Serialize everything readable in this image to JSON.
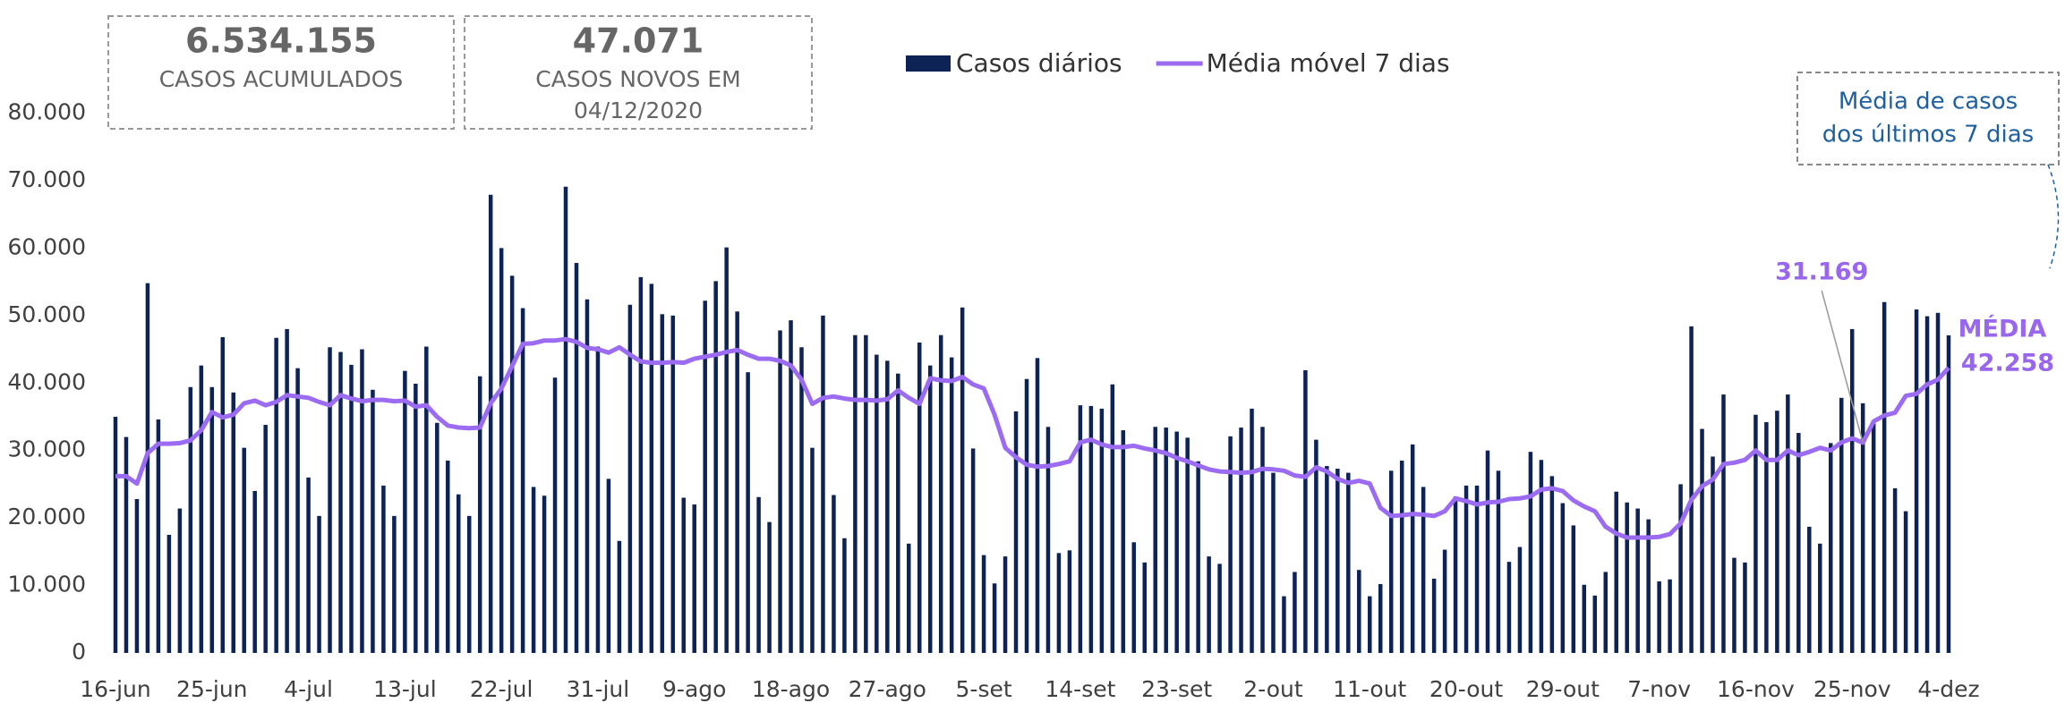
{
  "chart_data": {
    "type": "bar",
    "kpis": [
      {
        "value": "6.534.155",
        "lines": [
          "CASOS ACUMULADOS"
        ]
      },
      {
        "value": "47.071",
        "lines": [
          "CASOS NOVOS EM",
          "04/12/2020"
        ]
      }
    ],
    "note": [
      "Média de casos",
      "dos últimos 7 dias"
    ],
    "mean_label": "MÉDIA",
    "categories": [
      "16-jun",
      null,
      null,
      null,
      null,
      null,
      null,
      null,
      null,
      "25-jun",
      null,
      null,
      null,
      null,
      null,
      null,
      null,
      null,
      "4-jul",
      null,
      null,
      null,
      null,
      null,
      null,
      null,
      null,
      "13-jul",
      null,
      null,
      null,
      null,
      null,
      null,
      null,
      null,
      "22-jul",
      null,
      null,
      null,
      null,
      null,
      null,
      null,
      null,
      "31-jul",
      null,
      null,
      null,
      null,
      null,
      null,
      null,
      null,
      "9-ago",
      null,
      null,
      null,
      null,
      null,
      null,
      null,
      null,
      "18-ago",
      null,
      null,
      null,
      null,
      null,
      null,
      null,
      null,
      "27-ago",
      null,
      null,
      null,
      null,
      null,
      null,
      null,
      null,
      "5-set",
      null,
      null,
      null,
      null,
      null,
      null,
      null,
      null,
      "14-set",
      null,
      null,
      null,
      null,
      null,
      null,
      null,
      null,
      "23-set",
      null,
      null,
      null,
      null,
      null,
      null,
      null,
      null,
      "2-out",
      null,
      null,
      null,
      null,
      null,
      null,
      null,
      null,
      "11-out",
      null,
      null,
      null,
      null,
      null,
      null,
      null,
      null,
      "20-out",
      null,
      null,
      null,
      null,
      null,
      null,
      null,
      null,
      "29-out",
      null,
      null,
      null,
      null,
      null,
      null,
      null,
      null,
      "7-nov",
      null,
      null,
      null,
      null,
      null,
      null,
      null,
      null,
      "16-nov",
      null,
      null,
      null,
      null,
      null,
      null,
      null,
      null,
      "25-nov",
      null,
      null,
      null,
      null,
      null,
      null,
      null,
      null,
      "4-dez"
    ],
    "series": [
      {
        "name": "Casos diários",
        "type": "bar",
        "color": "#0d2356",
        "values": [
          35000,
          32000,
          22800,
          54800,
          34600,
          17500,
          21400,
          39400,
          42600,
          39400,
          46800,
          38600,
          30400,
          24000,
          33800,
          46700,
          48000,
          42200,
          26000,
          20300,
          45300,
          44600,
          42700,
          45000,
          39000,
          24800,
          20300,
          41800,
          39900,
          45400,
          34100,
          28500,
          23500,
          20300,
          41000,
          67900,
          60000,
          55900,
          51100,
          24600,
          23300,
          40800,
          69100,
          57800,
          52400,
          45400,
          25800,
          16600,
          51600,
          55700,
          54700,
          50200,
          50000,
          23000,
          22000,
          52200,
          55100,
          60100,
          50600,
          41600,
          23100,
          19400,
          47800,
          49300,
          45300,
          30400,
          50000,
          23400,
          17000,
          47100,
          47100,
          44200,
          43300,
          41400,
          16200,
          46000,
          42600,
          47100,
          43800,
          51200,
          30300,
          14500,
          10300,
          14300,
          35800,
          40600,
          43700,
          33500,
          14800,
          15200,
          36700,
          36600,
          36200,
          39800,
          33000,
          16400,
          13400,
          33500,
          33400,
          32800,
          31900,
          28400,
          14300,
          13200,
          32100,
          33400,
          36200,
          33500,
          26700,
          8400,
          12000,
          41900,
          31600,
          27700,
          27300,
          26700,
          12300,
          8400,
          10200,
          27000,
          28500,
          30900,
          24600,
          11000,
          15300,
          23200,
          24800,
          24800,
          30000,
          27000,
          13500,
          15700,
          29800,
          28600,
          26200,
          22200,
          18900,
          10100,
          8500,
          12000,
          23900,
          22300,
          21400,
          19800,
          10600,
          10900,
          25000,
          48400,
          33200,
          29100,
          38300,
          14100,
          13400,
          35300,
          34200,
          35900,
          38300,
          32600,
          18700,
          16200,
          31100,
          37800,
          48000,
          37000,
          34000,
          52000,
          24400,
          21000,
          50900,
          49900,
          50400,
          47071
        ]
      },
      {
        "name": "Média móvel 7 dias",
        "type": "line",
        "color": "#9b6bf2",
        "values": [
          26200,
          26200,
          25100,
          29600,
          31000,
          31000,
          31100,
          31500,
          33000,
          35700,
          34900,
          35300,
          37000,
          37400,
          36700,
          37200,
          38200,
          38000,
          37800,
          37200,
          36700,
          38200,
          37700,
          37300,
          37500,
          37500,
          37300,
          37400,
          36500,
          36700,
          35000,
          33700,
          33400,
          33300,
          33400,
          37000,
          39200,
          42500,
          45800,
          45900,
          46300,
          46300,
          46500,
          46100,
          45200,
          45000,
          44500,
          45300,
          44200,
          43200,
          43000,
          43000,
          43100,
          43000,
          43600,
          43900,
          44200,
          44600,
          44900,
          44200,
          43600,
          43600,
          43300,
          42600,
          40500,
          36900,
          37800,
          38000,
          37700,
          37500,
          37500,
          37400,
          37600,
          38900,
          37800,
          36900,
          40700,
          40400,
          40300,
          40900,
          39800,
          39200,
          35300,
          30400,
          29000,
          27900,
          27600,
          27700,
          28000,
          28400,
          31200,
          31600,
          30900,
          30500,
          30500,
          30700,
          30300,
          30000,
          29600,
          28900,
          28400,
          27800,
          27200,
          26900,
          26800,
          26700,
          26800,
          27300,
          27200,
          27000,
          26300,
          26100,
          27500,
          26900,
          25800,
          25200,
          25500,
          25100,
          21500,
          20300,
          20400,
          20600,
          20500,
          20300,
          21000,
          22900,
          22500,
          22000,
          22300,
          22400,
          22800,
          22900,
          23200,
          24200,
          24400,
          24000,
          22600,
          21700,
          21000,
          18700,
          17700,
          17100,
          17100,
          17100,
          17200,
          17600,
          19200,
          22700,
          24700,
          25700,
          28000,
          28200,
          28600,
          30000,
          28600,
          28600,
          30000,
          29300,
          29800,
          30400,
          30000,
          31200,
          31800,
          31169,
          34300,
          35200,
          35600,
          38100,
          38400,
          39800,
          40500,
          42258
        ],
        "value_labels": [
          null,
          null,
          null,
          null,
          null,
          null,
          null,
          null,
          null,
          null,
          null,
          null,
          null,
          null,
          null,
          null,
          null,
          null,
          null,
          null,
          null,
          null,
          null,
          null,
          null,
          null,
          null,
          null,
          null,
          null,
          null,
          null,
          null,
          null,
          null,
          null,
          null,
          null,
          null,
          null,
          null,
          null,
          null,
          null,
          null,
          null,
          null,
          null,
          null,
          null,
          null,
          null,
          null,
          null,
          null,
          null,
          null,
          null,
          null,
          null,
          null,
          null,
          null,
          null,
          null,
          null,
          null,
          null,
          null,
          null,
          null,
          null,
          null,
          null,
          null,
          null,
          null,
          null,
          null,
          null,
          null,
          null,
          null,
          null,
          null,
          null,
          null,
          null,
          null,
          null,
          null,
          null,
          null,
          null,
          null,
          null,
          null,
          null,
          null,
          null,
          null,
          null,
          null,
          null,
          null,
          null,
          null,
          null,
          null,
          null,
          null,
          null,
          null,
          null,
          null,
          null,
          null,
          null,
          null,
          null,
          null,
          null,
          null,
          null,
          null,
          null,
          null,
          null,
          null,
          null,
          null,
          null,
          null,
          null,
          null,
          null,
          null,
          null,
          null,
          null,
          null,
          null,
          null,
          null,
          null,
          null,
          null,
          null,
          null,
          null,
          null,
          null,
          null,
          null,
          null,
          null,
          null,
          null,
          null,
          null,
          null,
          null,
          null,
          "31.169",
          null,
          null,
          null,
          null,
          null,
          null,
          null,
          "42.258"
        ]
      }
    ],
    "ylim": [
      0,
      80000
    ],
    "yticks": [
      {
        "value": 0,
        "label": "0"
      },
      {
        "value": 10000,
        "label": "10.000"
      },
      {
        "value": 20000,
        "label": "20.000"
      },
      {
        "value": 30000,
        "label": "30.000"
      },
      {
        "value": 40000,
        "label": "40.000"
      },
      {
        "value": 50000,
        "label": "50.000"
      },
      {
        "value": 60000,
        "label": "60.000"
      },
      {
        "value": 70000,
        "label": "70.000"
      },
      {
        "value": 80000,
        "label": "80.000"
      }
    ],
    "grid": false,
    "legend": "top"
  }
}
